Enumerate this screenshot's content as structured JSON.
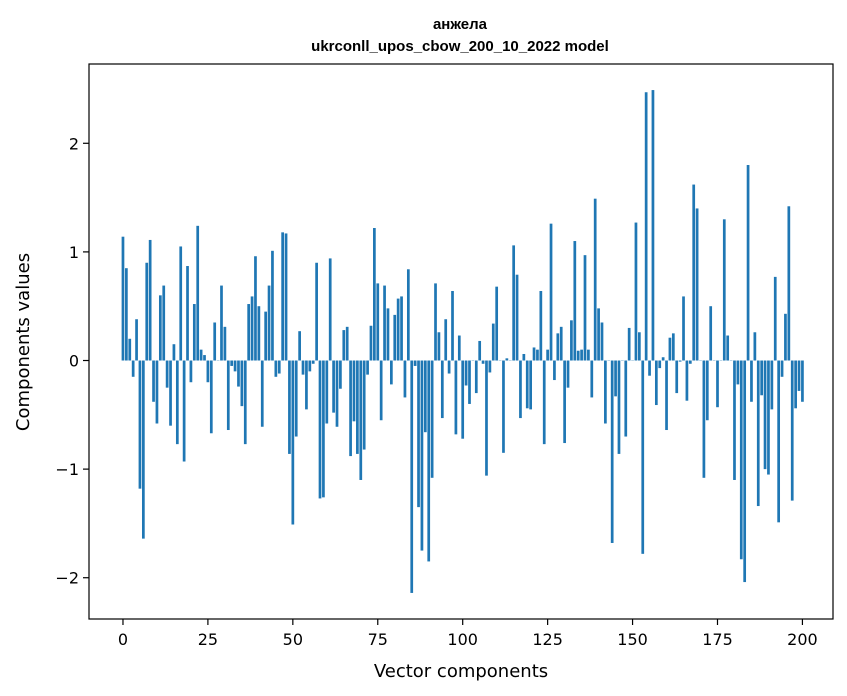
{
  "chart_data": {
    "type": "bar",
    "title_line1": "анжела",
    "title_line2": "ukrconll_upos_cbow_200_10_2022 model",
    "xlabel": "Vector components",
    "ylabel": "Components values",
    "xlim": [
      -10,
      209
    ],
    "ylim": [
      -2.38,
      2.73
    ],
    "grid": false,
    "color": "#1f77b4",
    "x_ticks": [
      {
        "value": 0,
        "label": "0"
      },
      {
        "value": 25,
        "label": "25"
      },
      {
        "value": 50,
        "label": "50"
      },
      {
        "value": 75,
        "label": "75"
      },
      {
        "value": 100,
        "label": "100"
      },
      {
        "value": 125,
        "label": "125"
      },
      {
        "value": 150,
        "label": "150"
      },
      {
        "value": 175,
        "label": "175"
      },
      {
        "value": 200,
        "label": "200"
      }
    ],
    "y_ticks": [
      {
        "value": -2,
        "label": "−2"
      },
      {
        "value": -1,
        "label": "−1"
      },
      {
        "value": 0,
        "label": "0"
      },
      {
        "value": 1,
        "label": "1"
      },
      {
        "value": 2,
        "label": "2"
      }
    ],
    "values": [
      1.14,
      0.85,
      0.2,
      -0.15,
      0.38,
      -1.18,
      -1.64,
      0.9,
      1.11,
      -0.38,
      -0.58,
      0.6,
      0.69,
      -0.25,
      -0.6,
      0.15,
      -0.77,
      1.05,
      -0.93,
      0.87,
      -0.2,
      0.52,
      1.24,
      0.1,
      0.05,
      -0.2,
      -0.67,
      0.35,
      0.0,
      0.69,
      0.31,
      -0.64,
      -0.05,
      -0.1,
      -0.24,
      -0.42,
      -0.77,
      0.52,
      0.59,
      0.96,
      0.5,
      -0.61,
      0.45,
      0.69,
      1.01,
      -0.15,
      -0.12,
      1.18,
      1.17,
      -0.86,
      -1.51,
      -0.7,
      0.27,
      -0.13,
      -0.45,
      -0.1,
      -0.03,
      0.9,
      -1.27,
      -1.26,
      -0.58,
      0.94,
      -0.48,
      -0.61,
      -0.26,
      0.28,
      0.31,
      -0.88,
      -0.56,
      -0.86,
      -1.1,
      -0.82,
      -0.13,
      0.32,
      1.22,
      0.71,
      -0.55,
      0.69,
      0.48,
      -0.22,
      0.42,
      0.57,
      0.59,
      -0.34,
      0.84,
      -2.14,
      -0.05,
      -1.35,
      -1.75,
      -0.66,
      -1.85,
      -1.08,
      0.71,
      0.26,
      -0.53,
      0.38,
      -0.12,
      0.64,
      -0.68,
      0.23,
      -0.72,
      -0.23,
      -0.4,
      0.0,
      -0.3,
      0.18,
      -0.03,
      -1.06,
      -0.11,
      0.34,
      0.68,
      0.0,
      -0.85,
      0.02,
      0.0,
      1.06,
      0.79,
      -0.53,
      0.06,
      -0.44,
      -0.45,
      0.12,
      0.1,
      0.64,
      -0.77,
      0.1,
      1.26,
      -0.18,
      0.25,
      0.31,
      -0.76,
      -0.25,
      0.37,
      1.1,
      0.09,
      0.1,
      0.97,
      0.1,
      -0.34,
      1.49,
      0.48,
      0.35,
      -0.58,
      0.0,
      -1.68,
      -0.33,
      -0.86,
      0.0,
      -0.7,
      0.3,
      0.0,
      1.27,
      0.26,
      -1.78,
      2.47,
      -0.14,
      2.49,
      -0.41,
      -0.07,
      0.03,
      -0.64,
      0.21,
      0.25,
      -0.3,
      -0.01,
      0.59,
      -0.37,
      -0.03,
      1.62,
      1.4,
      0.0,
      -1.08,
      -0.55,
      0.5,
      0.0,
      -0.43,
      0.0,
      1.3,
      0.23,
      0.0,
      -1.1,
      -0.22,
      -1.83,
      -2.04,
      1.8,
      -0.38,
      0.26,
      -1.34,
      -0.32,
      -1.0,
      -1.05,
      -0.45,
      0.77,
      -1.49,
      -0.15,
      0.43,
      1.42,
      -1.29,
      -0.44,
      -0.28,
      -0.38
    ]
  }
}
